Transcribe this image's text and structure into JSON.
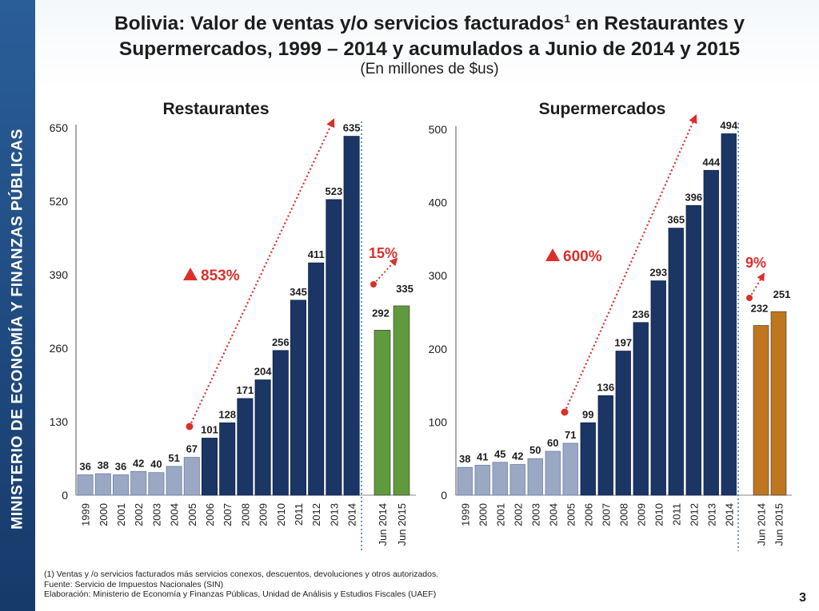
{
  "sidebar": {
    "label": "MINISTERIO DE ECONOMÍA Y FINANZAS PÚBLICAS"
  },
  "header": {
    "title_line1": "Bolivia: Valor de ventas y/o servicios facturados",
    "title_sup": "1",
    "title_line1_end": " en Restaurantes y",
    "title_line2": "Supermercados, 1999 – 2014 y acumulados a Junio de 2014 y 2015",
    "subtitle": "(En millones de $us)"
  },
  "chart_data": [
    {
      "type": "bar",
      "title": "Restaurantes",
      "categories": [
        "1999",
        "2000",
        "2001",
        "2002",
        "2003",
        "2004",
        "2005",
        "2006",
        "2007",
        "2008",
        "2009",
        "2010",
        "2011",
        "2012",
        "2013",
        "2014"
      ],
      "values": [
        36,
        38,
        36,
        42,
        40,
        51,
        67,
        101,
        128,
        171,
        204,
        256,
        345,
        411,
        523,
        635
      ],
      "ylim": [
        0,
        650
      ],
      "yticks": [
        0,
        130,
        260,
        390,
        520,
        650
      ],
      "partial_categories": [
        "Jun 2014",
        "Jun 2015"
      ],
      "partial_values": [
        292,
        335
      ],
      "growth_label": "853%",
      "partial_growth_label": "15%",
      "partial_color": "#5f9a3c"
    },
    {
      "type": "bar",
      "title": "Supermercados",
      "categories": [
        "1999",
        "2000",
        "2001",
        "2002",
        "2003",
        "2004",
        "2005",
        "2006",
        "2007",
        "2008",
        "2009",
        "2010",
        "2011",
        "2012",
        "2013",
        "2014"
      ],
      "values": [
        38,
        41,
        45,
        42,
        50,
        60,
        71,
        99,
        136,
        197,
        236,
        293,
        365,
        396,
        444,
        494
      ],
      "ylim": [
        0,
        500
      ],
      "yticks": [
        0,
        100,
        200,
        300,
        400,
        500
      ],
      "partial_categories": [
        "Jun 2014",
        "Jun 2015"
      ],
      "partial_values": [
        232,
        251
      ],
      "growth_label": "600%",
      "partial_growth_label": "9%",
      "partial_color": "#c0761f"
    }
  ],
  "footnotes": {
    "note": "(1) Ventas y /o servicios facturados más servicios conexos, descuentos, devoluciones y otros autorizados.",
    "source": "Fuente: Servicio de Impuestos Nacionales (SIN)",
    "elaboration": "Elaboración: Ministerio de Economía y Finanzas Públicas, Unidad de Análisis y Estudios Fiscales (UAEF)"
  },
  "page_number": "3",
  "colors": {
    "sidebar": "#1f4a80",
    "bar_main": "#1b3565",
    "bar_early": "#9aa8c4",
    "arrow": "#d9302c",
    "growth_text": "#d9302c",
    "divider": "#3a7fc0"
  }
}
